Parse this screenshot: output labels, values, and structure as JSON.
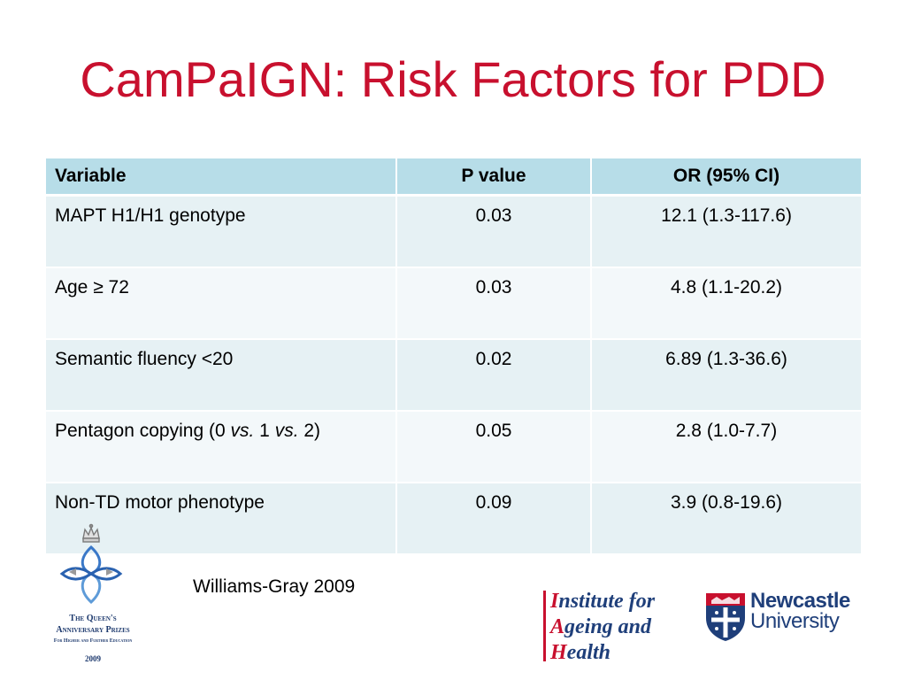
{
  "slide": {
    "title": "CamPaIGN: Risk Factors for PDD",
    "citation": "Williams-Gray 2009"
  },
  "table": {
    "headers": [
      "Variable",
      "P value",
      "OR (95% CI)"
    ],
    "rows": [
      {
        "variable": "MAPT H1/H1 genotype",
        "p_value": "0.03",
        "or_ci": "12.1 (1.3-117.6)"
      },
      {
        "variable": "Age ≥ 72",
        "p_value": "0.03",
        "or_ci": "4.8 (1.1-20.2)"
      },
      {
        "variable": "Semantic fluency <20",
        "p_value": "0.02",
        "or_ci": "6.89 (1.3-36.6)"
      },
      {
        "variable_parts": [
          "Pentagon copying (0 ",
          "vs.",
          " 1 ",
          "vs.",
          " 2)"
        ],
        "p_value": "0.05",
        "or_ci": "2.8 (1.0-7.7)"
      },
      {
        "variable": "Non-TD motor phenotype",
        "p_value": "0.09",
        "or_ci": "3.9 (0.8-19.6)"
      }
    ]
  },
  "logos": {
    "qap": {
      "icon": "crown-knot-icon",
      "line1": "The Queen's",
      "line2": "Anniversary Prizes",
      "line3": "For Higher and Further Education",
      "year": "2009"
    },
    "iah": {
      "line1_initial": "I",
      "line1_rest": "nstitute for",
      "line2_initial": "A",
      "line2_rest": "geing and",
      "line3_initial": "H",
      "line3_rest": "ealth"
    },
    "newcastle": {
      "icon": "shield-icon",
      "line1": "Newcastle",
      "line2": "University"
    }
  },
  "colors": {
    "title": "#c8102e",
    "header_bg": "#b7dde8",
    "row_odd": "#e6f1f4",
    "row_even": "#f3f8fa",
    "logo_blue": "#1f3f7a"
  }
}
